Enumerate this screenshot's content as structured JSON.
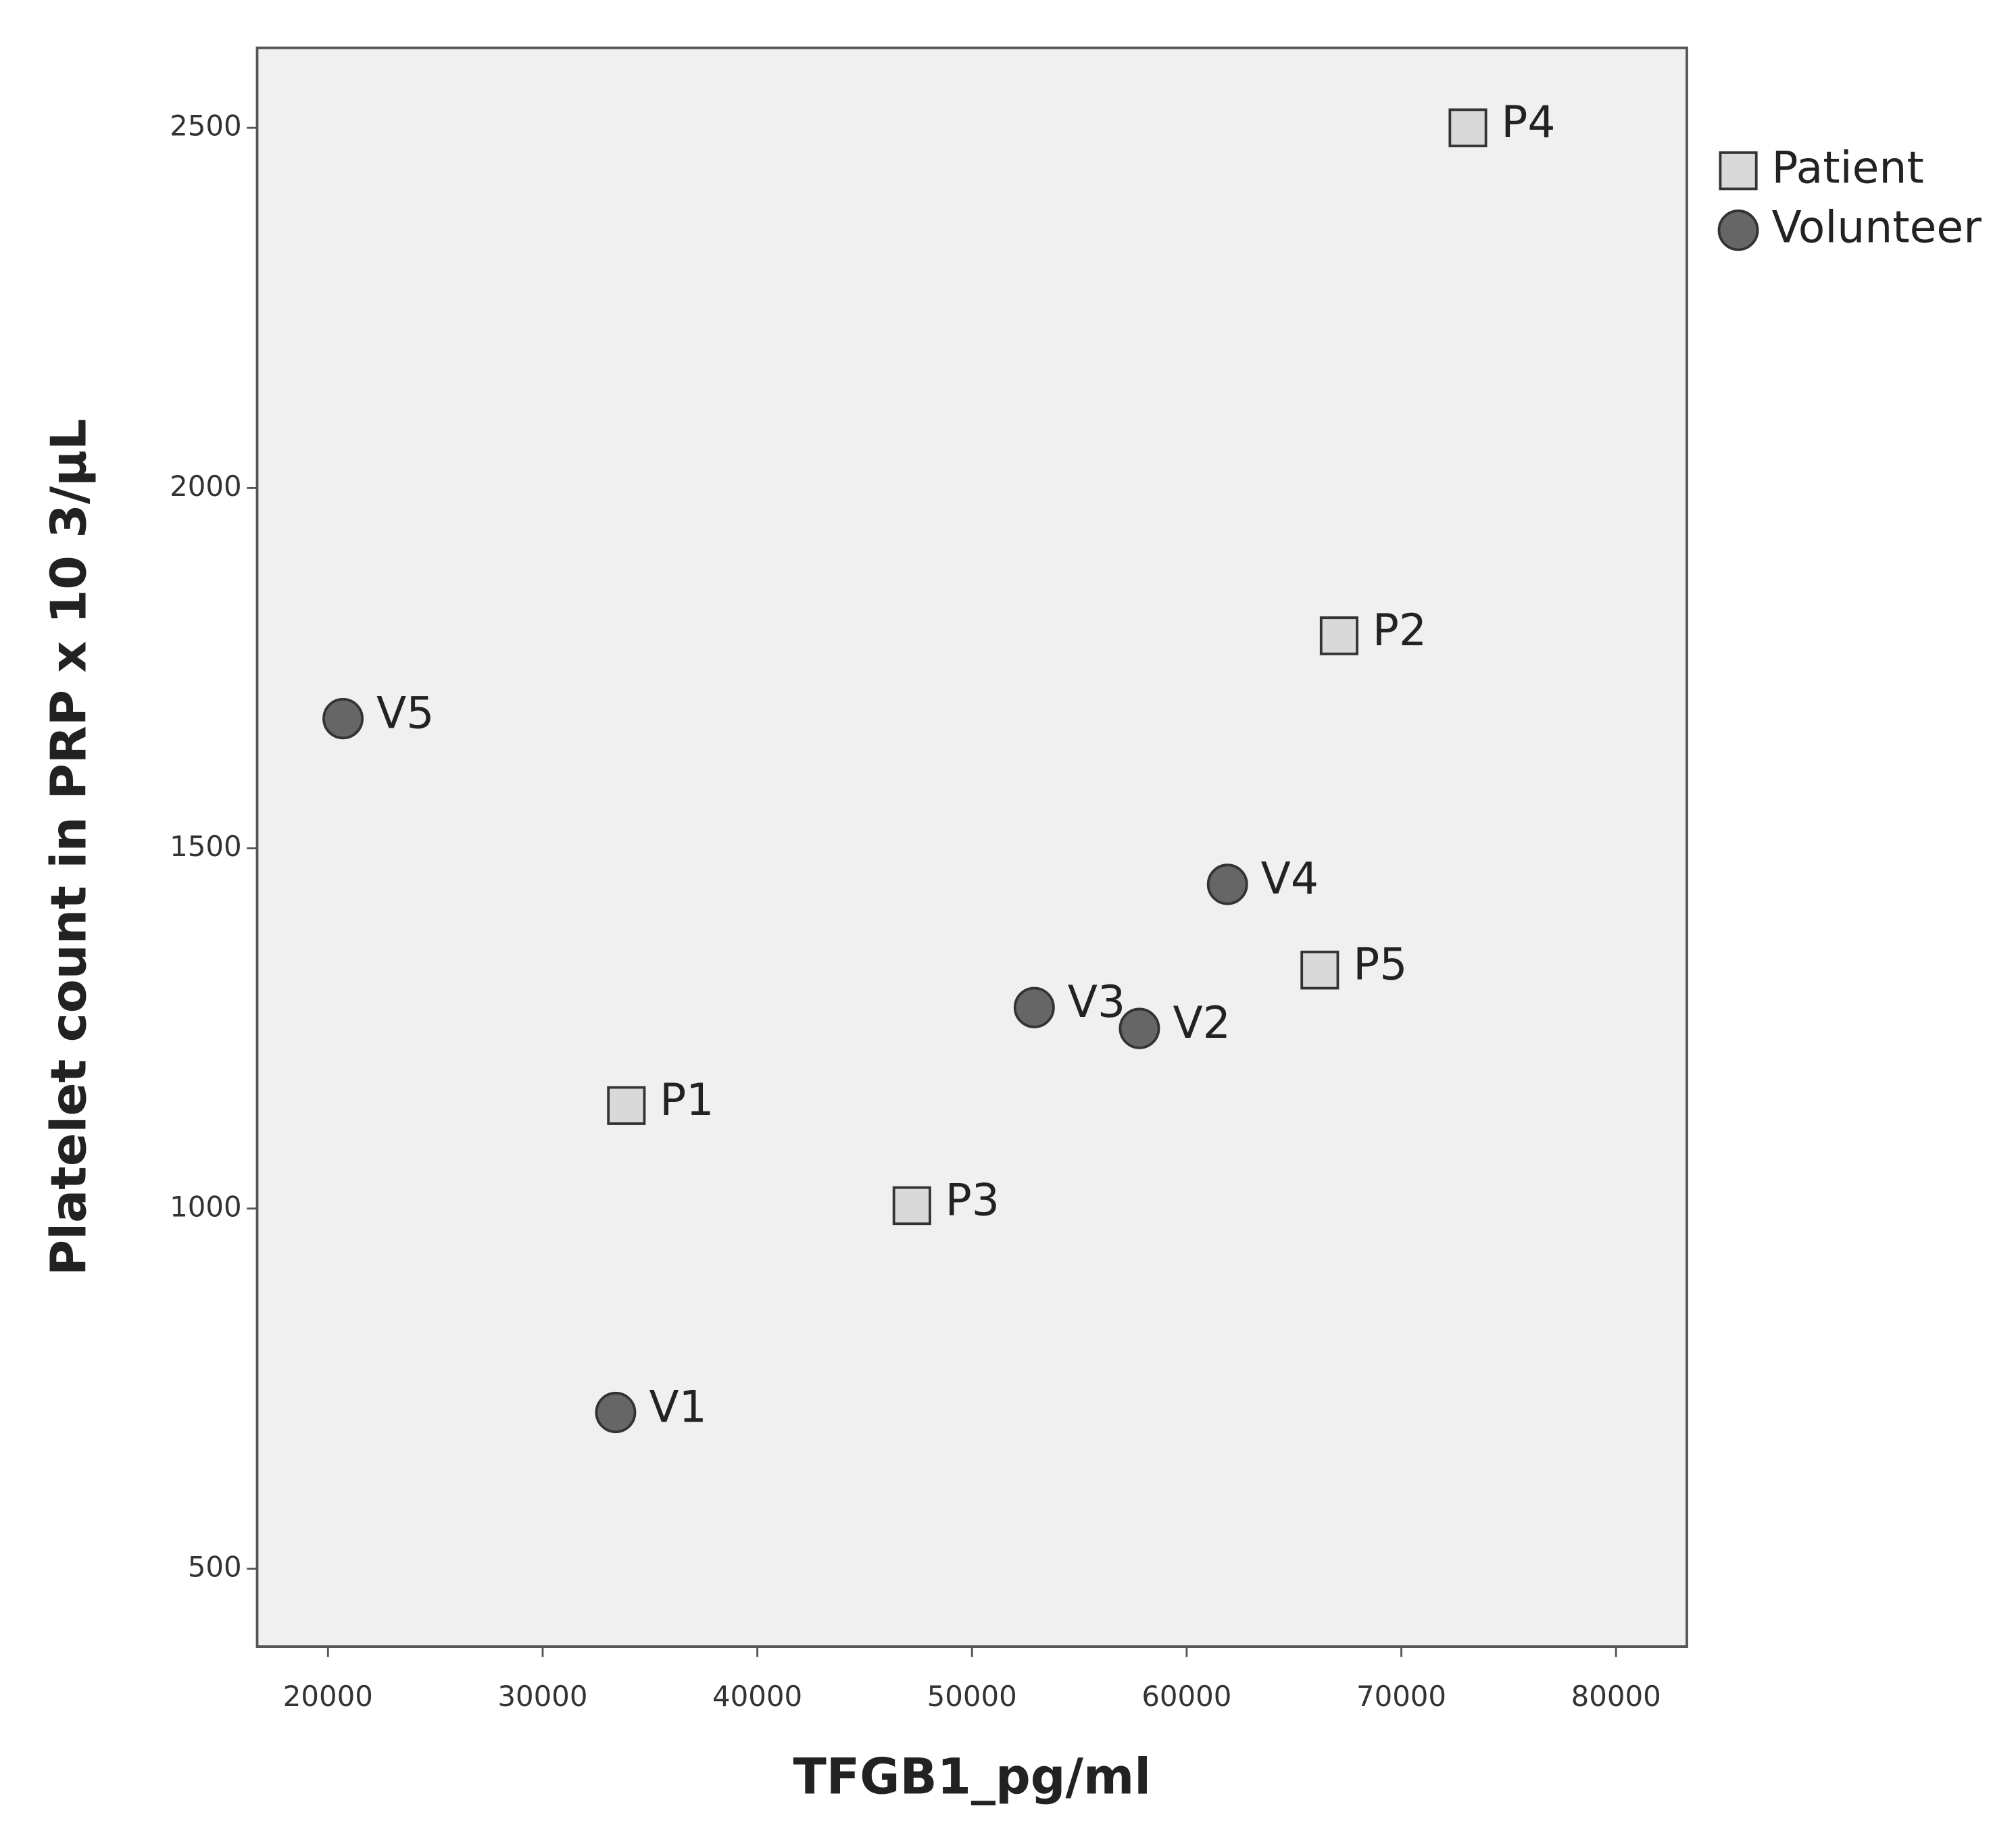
{
  "chart_data": {
    "type": "scatter",
    "x_label": "TFGB1_pg/ml",
    "y_label": "Platelet count in PRP x 10 3/µL",
    "xlim": [
      16700,
      83300
    ],
    "ylim": [
      392,
      2611
    ],
    "xticks": [
      20000,
      30000,
      40000,
      50000,
      60000,
      70000,
      80000
    ],
    "yticks": [
      500,
      1000,
      1500,
      2000,
      2500
    ],
    "background": "#f0f0f0",
    "legend": "right",
    "series": [
      {
        "name": "Patient",
        "color": "#d9d9d9",
        "marker": "square",
        "labels": [
          "P1",
          "P2",
          "P3",
          "P4",
          "P5"
        ],
        "x": [
          33900,
          67100,
          47200,
          73100,
          66200
        ],
        "values": [
          1143,
          1795,
          1004,
          2500,
          1331
        ]
      },
      {
        "name": "Volunteer",
        "color": "#666666",
        "marker": "circle",
        "labels": [
          "V1",
          "V2",
          "V3",
          "V4",
          "V5"
        ],
        "x": [
          33400,
          57800,
          52900,
          61900,
          20700
        ],
        "values": [
          717,
          1250,
          1279,
          1450,
          1680
        ]
      }
    ]
  }
}
